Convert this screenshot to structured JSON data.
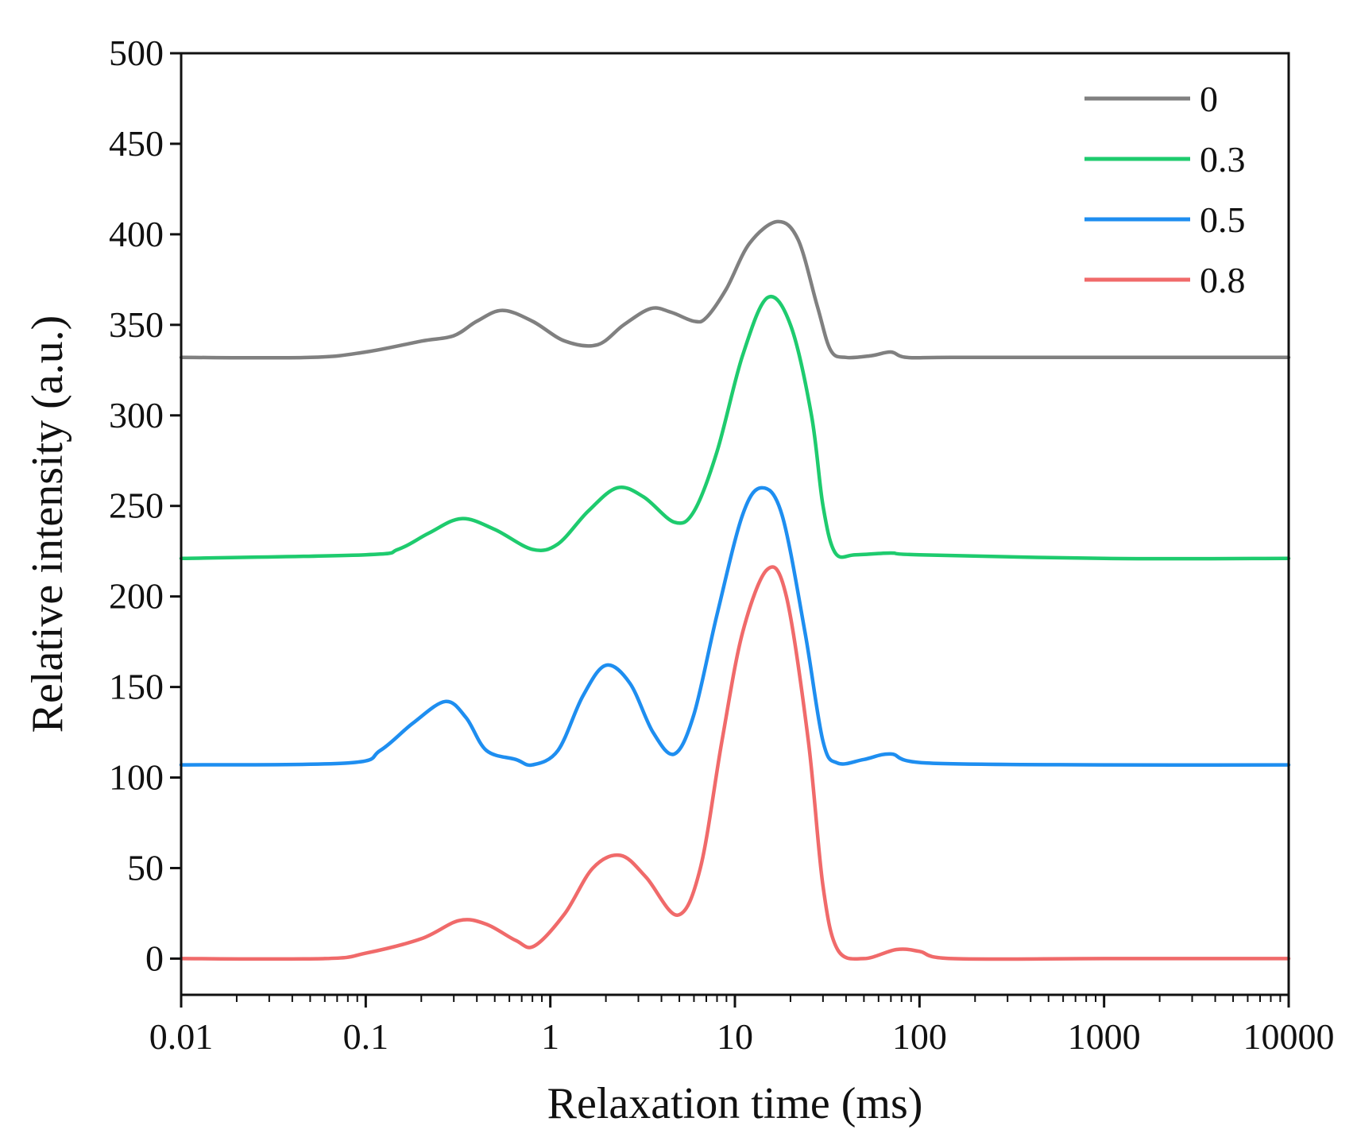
{
  "chart_data": {
    "type": "line",
    "title": "",
    "xlabel": "Relaxation time (ms)",
    "ylabel": "Relative intensity (a.u.)",
    "xscale": "log",
    "xlim": [
      0.01,
      10000
    ],
    "ylim": [
      -20,
      500
    ],
    "xticks": [
      0.01,
      0.1,
      1,
      10,
      100,
      1000,
      10000
    ],
    "xtick_labels": [
      "0.01",
      "0.1",
      "1",
      "10",
      "100",
      "1000",
      "10000"
    ],
    "yticks": [
      0,
      50,
      100,
      150,
      200,
      250,
      300,
      350,
      400,
      450,
      500
    ],
    "ytick_labels": [
      "0",
      "50",
      "100",
      "150",
      "200",
      "250",
      "300",
      "350",
      "400",
      "450",
      "500"
    ],
    "grid": false,
    "legend_position": "top-right",
    "series": [
      {
        "name": "0",
        "color": "#808080",
        "points": [
          [
            0.01,
            332
          ],
          [
            0.05,
            332
          ],
          [
            0.1,
            335
          ],
          [
            0.2,
            341
          ],
          [
            0.3,
            344
          ],
          [
            0.4,
            352
          ],
          [
            0.55,
            358
          ],
          [
            0.8,
            352
          ],
          [
            1.2,
            341
          ],
          [
            1.8,
            339
          ],
          [
            2.5,
            350
          ],
          [
            3.5,
            359
          ],
          [
            4.5,
            357
          ],
          [
            6,
            352
          ],
          [
            7,
            354
          ],
          [
            9,
            370
          ],
          [
            12,
            395
          ],
          [
            17,
            407
          ],
          [
            22,
            397
          ],
          [
            28,
            360
          ],
          [
            33,
            336
          ],
          [
            40,
            332
          ],
          [
            55,
            333
          ],
          [
            70,
            335
          ],
          [
            85,
            332
          ],
          [
            150,
            332
          ],
          [
            1000,
            332
          ],
          [
            10000,
            332
          ]
        ]
      },
      {
        "name": "0.3",
        "color": "#1ecb6e",
        "points": [
          [
            0.01,
            221
          ],
          [
            0.1,
            223
          ],
          [
            0.15,
            226
          ],
          [
            0.22,
            235
          ],
          [
            0.33,
            243
          ],
          [
            0.5,
            237
          ],
          [
            0.8,
            226
          ],
          [
            1.1,
            229
          ],
          [
            1.6,
            247
          ],
          [
            2.3,
            260
          ],
          [
            3.2,
            255
          ],
          [
            4.7,
            241
          ],
          [
            6,
            247
          ],
          [
            8,
            280
          ],
          [
            11,
            333
          ],
          [
            15,
            365
          ],
          [
            20,
            350
          ],
          [
            26,
            300
          ],
          [
            30,
            250
          ],
          [
            35,
            224
          ],
          [
            45,
            223
          ],
          [
            70,
            224
          ],
          [
            100,
            223
          ],
          [
            1000,
            221
          ],
          [
            10000,
            221
          ]
        ]
      },
      {
        "name": "0.5",
        "color": "#1e8ef0",
        "points": [
          [
            0.01,
            107
          ],
          [
            0.08,
            108
          ],
          [
            0.12,
            115
          ],
          [
            0.18,
            130
          ],
          [
            0.27,
            142
          ],
          [
            0.35,
            133
          ],
          [
            0.45,
            115
          ],
          [
            0.65,
            110
          ],
          [
            0.8,
            107
          ],
          [
            1.1,
            115
          ],
          [
            1.5,
            145
          ],
          [
            2,
            162
          ],
          [
            2.7,
            152
          ],
          [
            3.6,
            125
          ],
          [
            4.7,
            113
          ],
          [
            6,
            135
          ],
          [
            8,
            190
          ],
          [
            11,
            245
          ],
          [
            14,
            260
          ],
          [
            18,
            245
          ],
          [
            24,
            180
          ],
          [
            30,
            120
          ],
          [
            36,
            108
          ],
          [
            50,
            110
          ],
          [
            70,
            113
          ],
          [
            110,
            108
          ],
          [
            1000,
            107
          ],
          [
            10000,
            107
          ]
        ]
      },
      {
        "name": "0.8",
        "color": "#f06a6a",
        "points": [
          [
            0.01,
            0
          ],
          [
            0.06,
            0
          ],
          [
            0.1,
            3
          ],
          [
            0.2,
            11
          ],
          [
            0.32,
            21
          ],
          [
            0.45,
            19
          ],
          [
            0.65,
            10
          ],
          [
            0.82,
            7
          ],
          [
            1.2,
            25
          ],
          [
            1.7,
            50
          ],
          [
            2.4,
            57
          ],
          [
            3.3,
            45
          ],
          [
            4.9,
            24
          ],
          [
            6.5,
            50
          ],
          [
            8.5,
            120
          ],
          [
            11,
            180
          ],
          [
            15,
            215
          ],
          [
            19,
            200
          ],
          [
            25,
            120
          ],
          [
            30,
            40
          ],
          [
            36,
            5
          ],
          [
            50,
            0
          ],
          [
            75,
            5
          ],
          [
            100,
            4
          ],
          [
            150,
            0
          ],
          [
            1000,
            0
          ],
          [
            10000,
            0
          ]
        ]
      }
    ]
  }
}
